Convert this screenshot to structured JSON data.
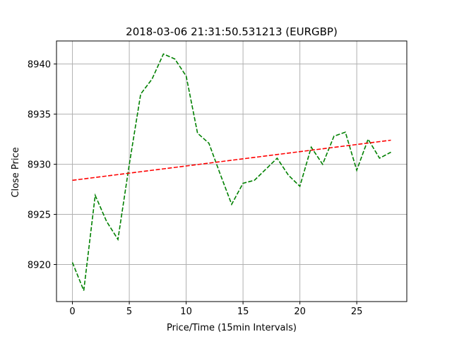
{
  "chart_data": {
    "type": "line",
    "title": "2018-03-06 21:31:50.531213 (EURGBP)",
    "xlabel": "Price/Time (15min Intervals)",
    "ylabel": "Close Price",
    "xlim": [
      -1.4,
      29.4
    ],
    "ylim": [
      8916.3,
      8942.3
    ],
    "xticks": [
      0,
      5,
      10,
      15,
      20,
      25
    ],
    "yticks": [
      8920,
      8925,
      8930,
      8935,
      8940
    ],
    "grid": true,
    "series": [
      {
        "style": "dashed",
        "color": "#008000",
        "x": [
          0,
          1,
          2,
          3,
          4,
          5,
          6,
          7,
          8,
          9,
          10,
          11,
          12,
          13,
          14,
          15,
          16,
          17,
          18,
          19,
          20,
          21,
          22,
          23,
          24,
          25,
          26,
          27,
          28
        ],
        "values": [
          8920.2,
          8917.4,
          8926.9,
          8924.3,
          8922.5,
          8930.0,
          8937.0,
          8938.5,
          8941.0,
          8940.5,
          8938.8,
          8933.1,
          8932.1,
          8929.0,
          8926.0,
          8928.1,
          8928.4,
          8929.5,
          8930.6,
          8928.9,
          8927.8,
          8931.7,
          8930.0,
          8932.8,
          8933.2,
          8929.4,
          8932.5,
          8930.6,
          8931.2
        ]
      },
      {
        "style": "dashed",
        "color": "#ff0000",
        "x": [
          0,
          28
        ],
        "values": [
          8928.4,
          8932.4
        ]
      }
    ]
  }
}
